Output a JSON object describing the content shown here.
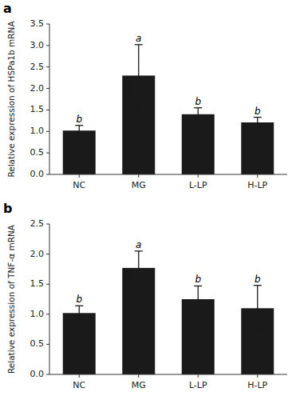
{
  "chart_data": [
    {
      "type": "bar",
      "title": "a",
      "categories": [
        "NC",
        "MG",
        "L-LP",
        "H-LP"
      ],
      "values": [
        1.02,
        2.3,
        1.4,
        1.21
      ],
      "errors": [
        0.12,
        0.72,
        0.15,
        0.12
      ],
      "annotations": [
        "b",
        "a",
        "b",
        "b"
      ],
      "ylabel": "Relative expression of HSPa1b mRNA",
      "ylim": [
        0,
        3.5
      ],
      "yticks": [
        {
          "value": 0.0,
          "label": "0.0"
        },
        0.5,
        {
          "value": 1.0,
          "label": "1.0"
        },
        1.5,
        {
          "value": 2.0,
          "label": "2.0"
        },
        2.5,
        {
          "value": 3.0,
          "label": "3.0"
        },
        3.5
      ],
      "color": "#1a1a1a",
      "grid": false
    },
    {
      "type": "bar",
      "title": "b",
      "categories": [
        "NC",
        "MG",
        "L-LP",
        "H-LP"
      ],
      "values": [
        1.02,
        1.77,
        1.25,
        1.1
      ],
      "errors": [
        0.12,
        0.28,
        0.22,
        0.38
      ],
      "annotations": [
        "b",
        "a",
        "b",
        "b"
      ],
      "ylabel": "Relative expression of TNF-α mRNA",
      "ylim": [
        0,
        2.5
      ],
      "yticks": [
        {
          "value": 0.0,
          "label": "0.0"
        },
        0.5,
        {
          "value": 1.0,
          "label": "1.0"
        },
        1.5,
        {
          "value": 2.0,
          "label": "2.0"
        },
        2.5
      ],
      "color": "#1a1a1a",
      "grid": false
    }
  ]
}
